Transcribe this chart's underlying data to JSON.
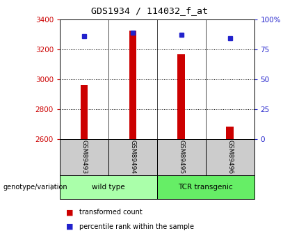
{
  "title": "GDS1934 / 114032_f_at",
  "samples": [
    "GSM89493",
    "GSM89494",
    "GSM89495",
    "GSM89496"
  ],
  "transformed_counts": [
    2960,
    3325,
    3165,
    2685
  ],
  "percentile_ranks": [
    86,
    89,
    87,
    84
  ],
  "ylim_left": [
    2600,
    3400
  ],
  "ylim_right": [
    0,
    100
  ],
  "yticks_left": [
    2600,
    2800,
    3000,
    3200,
    3400
  ],
  "yticks_right": [
    0,
    25,
    50,
    75,
    100
  ],
  "ytick_labels_right": [
    "0",
    "25",
    "50",
    "75",
    "100%"
  ],
  "bar_color": "#cc0000",
  "dot_color": "#2222cc",
  "groups": [
    {
      "label": "wild type",
      "samples": [
        0,
        1
      ],
      "color": "#aaffaa"
    },
    {
      "label": "TCR transgenic",
      "samples": [
        2,
        3
      ],
      "color": "#66ee66"
    }
  ],
  "group_label": "genotype/variation",
  "legend_items": [
    {
      "label": "transformed count",
      "color": "#cc0000"
    },
    {
      "label": "percentile rank within the sample",
      "color": "#2222cc"
    }
  ],
  "background_color": "#ffffff",
  "sample_box_color": "#cccccc",
  "bar_width": 0.15
}
